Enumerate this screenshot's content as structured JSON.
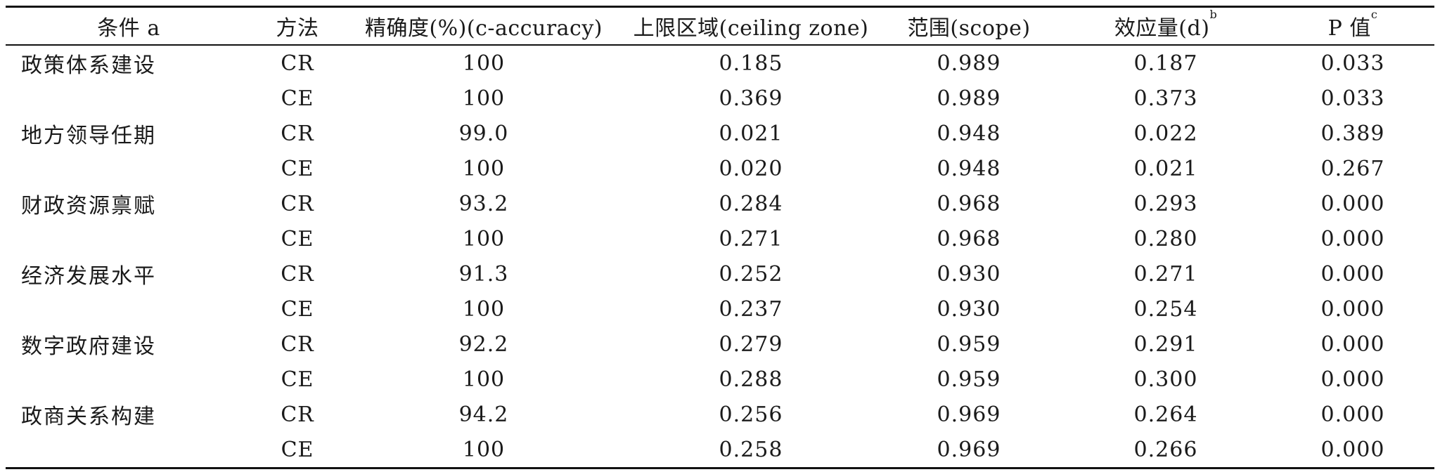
{
  "table": {
    "headers": {
      "condition": "条件 a",
      "method": "方法",
      "accuracy": "精确度(%)(c-accuracy)",
      "ceiling_zone": "上限区域(ceiling zone)",
      "scope": "范围(scope)",
      "effect_size": "效应量(d)",
      "effect_size_note": "b",
      "p_value": "P 值",
      "p_value_note": "c"
    },
    "rows": [
      {
        "condition": "政策体系建设",
        "method": "CR",
        "accuracy": "100",
        "ceiling_zone": "0.185",
        "scope": "0.989",
        "effect_size": "0.187",
        "p_value": "0.033"
      },
      {
        "condition": "",
        "method": "CE",
        "accuracy": "100",
        "ceiling_zone": "0.369",
        "scope": "0.989",
        "effect_size": "0.373",
        "p_value": "0.033"
      },
      {
        "condition": "地方领导任期",
        "method": "CR",
        "accuracy": "99.0",
        "ceiling_zone": "0.021",
        "scope": "0.948",
        "effect_size": "0.022",
        "p_value": "0.389"
      },
      {
        "condition": "",
        "method": "CE",
        "accuracy": "100",
        "ceiling_zone": "0.020",
        "scope": "0.948",
        "effect_size": "0.021",
        "p_value": "0.267"
      },
      {
        "condition": "财政资源禀赋",
        "method": "CR",
        "accuracy": "93.2",
        "ceiling_zone": "0.284",
        "scope": "0.968",
        "effect_size": "0.293",
        "p_value": "0.000"
      },
      {
        "condition": "",
        "method": "CE",
        "accuracy": "100",
        "ceiling_zone": "0.271",
        "scope": "0.968",
        "effect_size": "0.280",
        "p_value": "0.000"
      },
      {
        "condition": "经济发展水平",
        "method": "CR",
        "accuracy": "91.3",
        "ceiling_zone": "0.252",
        "scope": "0.930",
        "effect_size": "0.271",
        "p_value": "0.000"
      },
      {
        "condition": "",
        "method": "CE",
        "accuracy": "100",
        "ceiling_zone": "0.237",
        "scope": "0.930",
        "effect_size": "0.254",
        "p_value": "0.000"
      },
      {
        "condition": "数字政府建设",
        "method": "CR",
        "accuracy": "92.2",
        "ceiling_zone": "0.279",
        "scope": "0.959",
        "effect_size": "0.291",
        "p_value": "0.000"
      },
      {
        "condition": "",
        "method": "CE",
        "accuracy": "100",
        "ceiling_zone": "0.288",
        "scope": "0.959",
        "effect_size": "0.300",
        "p_value": "0.000"
      },
      {
        "condition": "政商关系构建",
        "method": "CR",
        "accuracy": "94.2",
        "ceiling_zone": "0.256",
        "scope": "0.969",
        "effect_size": "0.264",
        "p_value": "0.000"
      },
      {
        "condition": "",
        "method": "CE",
        "accuracy": "100",
        "ceiling_zone": "0.258",
        "scope": "0.969",
        "effect_size": "0.266",
        "p_value": "0.000"
      }
    ]
  }
}
